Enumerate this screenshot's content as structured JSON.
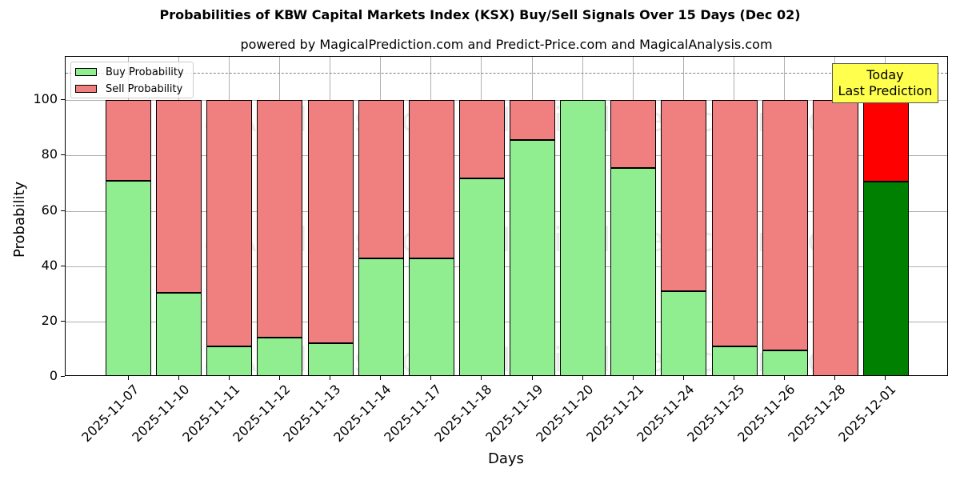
{
  "chart_data": {
    "type": "bar",
    "stacked": true,
    "title": "Probabilities of KBW Capital Markets Index (KSX) Buy/Sell Signals Over 15 Days (Dec 02)",
    "subtitle": "powered by MagicalPrediction.com and Predict-Price.com and MagicalAnalysis.com",
    "xlabel": "Days",
    "ylabel": "Probability",
    "ylim": [
      0,
      115
    ],
    "yticks": [
      0,
      20,
      40,
      60,
      80,
      100
    ],
    "grid": true,
    "legend_position": "upper left",
    "categories": [
      "2025-11-07",
      "2025-11-10",
      "2025-11-11",
      "2025-11-12",
      "2025-11-13",
      "2025-11-14",
      "2025-11-17",
      "2025-11-18",
      "2025-11-19",
      "2025-11-20",
      "2025-11-21",
      "2025-11-24",
      "2025-11-25",
      "2025-11-26",
      "2025-11-28",
      "2025-12-01"
    ],
    "series": [
      {
        "name": "Buy Probability",
        "color": "#90ee90",
        "values": [
          70.8,
          30.3,
          10.9,
          14.1,
          12.2,
          42.9,
          42.9,
          71.6,
          85.7,
          100.0,
          75.4,
          30.9,
          10.9,
          9.6,
          0.0,
          70.7
        ]
      },
      {
        "name": "Sell Probability",
        "color": "#f08080",
        "values": [
          29.2,
          69.7,
          89.1,
          85.9,
          87.8,
          57.1,
          57.1,
          28.4,
          14.3,
          0.0,
          24.6,
          69.1,
          89.1,
          90.4,
          100.0,
          29.3
        ]
      }
    ],
    "highlight_last": {
      "buy_color": "#008000",
      "sell_color": "#ff0000"
    },
    "reference_line": {
      "y": 110,
      "style": "dashed",
      "color": "#808080"
    },
    "annotations": [
      {
        "text": "Today\nLast Prediction",
        "line1": "Today",
        "line2": "Last Prediction",
        "x": "2025-12-01",
        "background": "#ffff4d"
      }
    ],
    "watermarks": [
      "MagicalAnalysis.com",
      "MagicalPrediction.com"
    ]
  },
  "legend": {
    "buy_label": "Buy Probability",
    "sell_label": "Sell Probability"
  }
}
